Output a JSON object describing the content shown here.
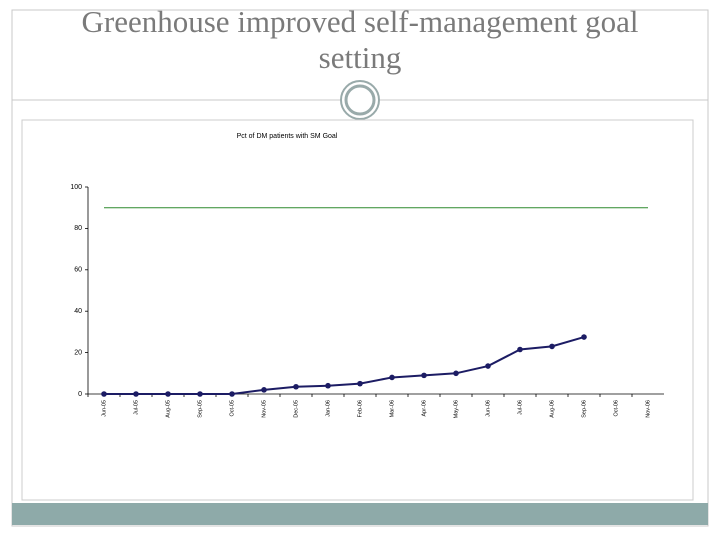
{
  "title": "Greenhouse improved self-management goal setting",
  "chart_data": {
    "type": "line",
    "title": "Pct of DM patients with SM Goal",
    "categories": [
      "Jun-05",
      "Jul-05",
      "Aug-05",
      "Sep-05",
      "Oct-05",
      "Nov-05",
      "Dec-05",
      "Jan-06",
      "Feb-06",
      "Mar-06",
      "Apr-06",
      "May-06",
      "Jun-06",
      "Jul-06",
      "Aug-06",
      "Sep-06",
      "Oct-06",
      "Nov-06"
    ],
    "series": [
      {
        "color": "#1c1c64",
        "markers": true,
        "values": [
          0,
          0,
          0,
          0,
          0,
          2,
          3.5,
          4,
          5,
          8,
          9,
          10,
          13.5,
          21.5,
          23,
          27.5,
          null,
          null
        ]
      },
      {
        "color": "#2f8a2f",
        "markers": false,
        "values": [
          90,
          90,
          90,
          90,
          90,
          90,
          90,
          90,
          90,
          90,
          90,
          90,
          90,
          90,
          90,
          90,
          90,
          90
        ]
      }
    ],
    "ylim": [
      0,
      100
    ],
    "yticks": [
      0,
      20,
      40,
      60,
      80,
      100
    ],
    "grid": false
  }
}
